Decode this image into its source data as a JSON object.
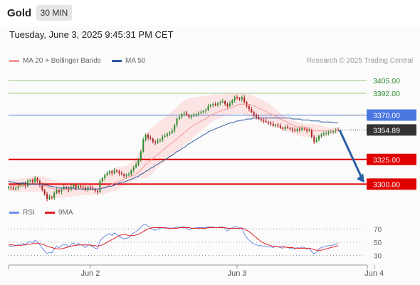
{
  "header": {
    "instrument": "Gold",
    "timeframe": "30 MIN",
    "timestamp": "Tuesday, June 3, 2025 9:45:31 PM CET"
  },
  "legend": {
    "ma20_label": "MA 20 + Bollinger Bands",
    "ma50_label": "MA 50",
    "rsi_label": "RSI",
    "ma9_label": "9MA"
  },
  "credit": "Research © 2025 Trading Central",
  "colors": {
    "ma20": "#f29a9a",
    "ma50": "#2b5a9e",
    "bollinger_fill": "#fde4e4",
    "resistance_blue": "#4a77e0",
    "support_red": "#e00000",
    "target_green": "#9ac77a",
    "bull": "#2e8b2e",
    "bear": "#b22222",
    "arrow": "#2b5fa6",
    "rsi": "#6f8ee8",
    "ma9": "#e02020"
  },
  "chart_data": [
    {
      "type": "candlestick",
      "title": "Gold 30 MIN",
      "x_ticks": [
        "Jun 2",
        "Jun 3",
        "Jun 4"
      ],
      "ylim": [
        3288,
        3418
      ],
      "price_levels": [
        {
          "value": 3405.0,
          "label": "3405.00",
          "kind": "target"
        },
        {
          "value": 3392.0,
          "label": "3392.00",
          "kind": "target"
        },
        {
          "value": 3370.0,
          "label": "3370.00",
          "kind": "resistance"
        },
        {
          "value": 3354.89,
          "label": "3354.89",
          "kind": "last"
        },
        {
          "value": 3325.0,
          "label": "3325.00",
          "kind": "support"
        },
        {
          "value": 3300.0,
          "label": "3300.00",
          "kind": "support"
        }
      ],
      "close": [
        3297,
        3296,
        3295,
        3296,
        3298,
        3299,
        3301,
        3298,
        3303,
        3304,
        3302,
        3306,
        3303,
        3299,
        3294,
        3290,
        3285,
        3287,
        3286,
        3291,
        3294,
        3292,
        3295,
        3297,
        3296,
        3294,
        3297,
        3299,
        3296,
        3298,
        3297,
        3296,
        3294,
        3297,
        3296,
        3295,
        3293,
        3292,
        3303,
        3306,
        3309,
        3311,
        3313,
        3311,
        3314,
        3313,
        3311,
        3310,
        3308,
        3309,
        3310,
        3314,
        3317,
        3320,
        3325,
        3333,
        3345,
        3350,
        3347,
        3346,
        3343,
        3342,
        3344,
        3345,
        3348,
        3349,
        3351,
        3352,
        3354,
        3360,
        3366,
        3368,
        3371,
        3372,
        3370,
        3368,
        3369,
        3370,
        3371,
        3372,
        3373,
        3374,
        3375,
        3379,
        3380,
        3381,
        3380,
        3382,
        3383,
        3384,
        3381,
        3379,
        3382,
        3385,
        3388,
        3387,
        3386,
        3388,
        3383,
        3379,
        3376,
        3373,
        3370,
        3368,
        3366,
        3365,
        3364,
        3363,
        3362,
        3361,
        3359,
        3360,
        3359,
        3357,
        3356,
        3358,
        3357,
        3356,
        3355,
        3354,
        3356,
        3355,
        3357,
        3356,
        3354,
        3355,
        3348,
        3343,
        3345,
        3349,
        3350,
        3351,
        3352,
        3353,
        3353,
        3354,
        3355,
        3354.89
      ],
      "ma20": [
        3299,
        3299,
        3299,
        3298,
        3298,
        3299,
        3299,
        3299,
        3300,
        3300,
        3300,
        3300,
        3300,
        3300,
        3299,
        3298,
        3297,
        3296,
        3296,
        3295,
        3295,
        3294,
        3294,
        3294,
        3294,
        3295,
        3295,
        3295,
        3295,
        3295,
        3296,
        3296,
        3295,
        3295,
        3295,
        3295,
        3295,
        3295,
        3296,
        3296,
        3297,
        3298,
        3299,
        3300,
        3301,
        3302,
        3303,
        3304,
        3305,
        3306,
        3307,
        3308,
        3309,
        3310,
        3312,
        3314,
        3317,
        3320,
        3322,
        3324,
        3326,
        3328,
        3330,
        3332,
        3334,
        3336,
        3338,
        3340,
        3342,
        3344,
        3346,
        3348,
        3350,
        3352,
        3354,
        3356,
        3358,
        3360,
        3361,
        3362,
        3364,
        3365,
        3366,
        3368,
        3370,
        3371,
        3372,
        3373,
        3374,
        3375,
        3376,
        3376,
        3377,
        3378,
        3379,
        3380,
        3381,
        3381,
        3381,
        3381,
        3381,
        3380,
        3379,
        3378,
        3377,
        3376,
        3375,
        3374,
        3372,
        3371,
        3370,
        3369,
        3367,
        3366,
        3365,
        3364,
        3362,
        3361,
        3360,
        3359,
        3358,
        3358,
        3357,
        3357,
        3356,
        3356,
        3355,
        3354,
        3354,
        3354,
        3354,
        3354,
        3354,
        3354,
        3354,
        3354,
        3355,
        3355
      ],
      "bb_upper": [
        3305,
        3305,
        3305,
        3305,
        3305,
        3306,
        3306,
        3306,
        3307,
        3307,
        3308,
        3308,
        3308,
        3308,
        3308,
        3308,
        3307,
        3306,
        3305,
        3304,
        3303,
        3303,
        3302,
        3302,
        3302,
        3302,
        3302,
        3302,
        3302,
        3302,
        3302,
        3302,
        3302,
        3302,
        3302,
        3301,
        3301,
        3301,
        3304,
        3306,
        3309,
        3311,
        3313,
        3314,
        3316,
        3317,
        3318,
        3318,
        3318,
        3319,
        3320,
        3322,
        3324,
        3327,
        3331,
        3336,
        3343,
        3349,
        3353,
        3356,
        3358,
        3360,
        3362,
        3364,
        3366,
        3368,
        3370,
        3372,
        3374,
        3376,
        3378,
        3381,
        3383,
        3385,
        3386,
        3387,
        3388,
        3388,
        3388,
        3389,
        3389,
        3389,
        3389,
        3390,
        3390,
        3391,
        3391,
        3391,
        3391,
        3391,
        3391,
        3391,
        3392,
        3392,
        3392,
        3392,
        3392,
        3392,
        3392,
        3391,
        3391,
        3390,
        3389,
        3388,
        3387,
        3386,
        3385,
        3383,
        3382,
        3380,
        3378,
        3376,
        3374,
        3372,
        3370,
        3368,
        3367,
        3366,
        3365,
        3364,
        3363,
        3362,
        3362,
        3361,
        3361,
        3361,
        3361,
        3361,
        3360,
        3360,
        3359,
        3358,
        3358,
        3357,
        3357,
        3357,
        3357,
        3357
      ],
      "bb_lower": [
        3293,
        3293,
        3293,
        3292,
        3292,
        3292,
        3292,
        3292,
        3292,
        3293,
        3292,
        3292,
        3292,
        3292,
        3291,
        3290,
        3288,
        3287,
        3286,
        3286,
        3286,
        3286,
        3286,
        3286,
        3286,
        3287,
        3287,
        3288,
        3288,
        3288,
        3289,
        3289,
        3289,
        3289,
        3289,
        3289,
        3289,
        3289,
        3289,
        3289,
        3290,
        3291,
        3292,
        3293,
        3293,
        3294,
        3295,
        3297,
        3298,
        3300,
        3302,
        3303,
        3304,
        3305,
        3306,
        3306,
        3306,
        3306,
        3307,
        3309,
        3311,
        3314,
        3316,
        3319,
        3321,
        3323,
        3325,
        3327,
        3329,
        3331,
        3333,
        3335,
        3337,
        3339,
        3341,
        3343,
        3345,
        3348,
        3350,
        3352,
        3354,
        3356,
        3358,
        3360,
        3362,
        3364,
        3365,
        3366,
        3367,
        3368,
        3369,
        3370,
        3370,
        3371,
        3371,
        3371,
        3371,
        3371,
        3370,
        3369,
        3368,
        3368,
        3367,
        3366,
        3365,
        3364,
        3363,
        3362,
        3361,
        3360,
        3359,
        3358,
        3357,
        3356,
        3355,
        3354,
        3353,
        3352,
        3351,
        3350,
        3349,
        3349,
        3348,
        3348,
        3348,
        3348,
        3348,
        3347,
        3347,
        3347,
        3347,
        3348,
        3348,
        3349,
        3350,
        3350,
        3351,
        3352
      ],
      "ma50": [
        3303,
        3302,
        3302,
        3301,
        3301,
        3301,
        3301,
        3301,
        3300,
        3300,
        3300,
        3300,
        3300,
        3300,
        3300,
        3299,
        3299,
        3298,
        3298,
        3297,
        3297,
        3296,
        3296,
        3296,
        3296,
        3296,
        3296,
        3296,
        3295,
        3295,
        3295,
        3295,
        3295,
        3295,
        3295,
        3295,
        3295,
        3295,
        3295,
        3296,
        3296,
        3297,
        3298,
        3298,
        3299,
        3300,
        3301,
        3302,
        3302,
        3303,
        3304,
        3305,
        3306,
        3307,
        3308,
        3310,
        3311,
        3313,
        3314,
        3316,
        3317,
        3319,
        3320,
        3322,
        3323,
        3325,
        3326,
        3328,
        3329,
        3331,
        3333,
        3334,
        3336,
        3337,
        3339,
        3341,
        3342,
        3344,
        3345,
        3347,
        3348,
        3350,
        3351,
        3353,
        3354,
        3355,
        3356,
        3357,
        3358,
        3359,
        3360,
        3361,
        3362,
        3362,
        3363,
        3364,
        3364,
        3365,
        3365,
        3366,
        3366,
        3366,
        3367,
        3367,
        3367,
        3367,
        3367,
        3367,
        3367,
        3367,
        3367,
        3367,
        3367,
        3367,
        3367,
        3367,
        3367,
        3367,
        3366,
        3366,
        3366,
        3366,
        3365,
        3365,
        3365,
        3365,
        3364,
        3364,
        3364,
        3364,
        3363,
        3363,
        3363,
        3363,
        3363,
        3362,
        3362,
        3362
      ],
      "projection": {
        "from": 3354.89,
        "to": 3300.0
      }
    },
    {
      "type": "line",
      "title": "RSI",
      "ylim": [
        20,
        80
      ],
      "y_ticks": [
        70,
        50,
        30
      ],
      "series": [
        {
          "name": "RSI",
          "values": [
            45,
            44,
            44,
            45,
            46,
            47,
            48,
            46,
            50,
            51,
            49,
            53,
            50,
            46,
            41,
            37,
            33,
            35,
            34,
            40,
            44,
            42,
            45,
            47,
            46,
            43,
            47,
            49,
            45,
            48,
            46,
            45,
            42,
            46,
            45,
            43,
            41,
            40,
            52,
            56,
            59,
            61,
            63,
            60,
            64,
            62,
            59,
            57,
            55,
            56,
            57,
            61,
            64,
            66,
            69,
            73,
            76,
            77,
            74,
            72,
            69,
            68,
            70,
            71,
            72,
            71,
            72,
            71,
            71,
            72,
            73,
            72,
            73,
            73,
            71,
            69,
            70,
            71,
            72,
            72,
            72,
            72,
            72,
            73,
            73,
            73,
            72,
            72,
            73,
            73,
            70,
            67,
            70,
            72,
            74,
            73,
            71,
            72,
            62,
            57,
            53,
            50,
            47,
            46,
            45,
            45,
            44,
            44,
            43,
            43,
            42,
            44,
            43,
            42,
            41,
            43,
            42,
            41,
            40,
            40,
            42,
            41,
            43,
            42,
            40,
            41,
            36,
            33,
            35,
            40,
            42,
            43,
            44,
            45,
            45,
            46,
            47,
            48
          ]
        },
        {
          "name": "9MA",
          "values": [
            46,
            46,
            46,
            45,
            45,
            45,
            46,
            46,
            47,
            47,
            48,
            48,
            49,
            48,
            47,
            46,
            44,
            43,
            42,
            41,
            40,
            40,
            40,
            41,
            42,
            43,
            44,
            45,
            45,
            46,
            46,
            46,
            46,
            46,
            46,
            45,
            45,
            44,
            45,
            46,
            48,
            50,
            52,
            54,
            56,
            58,
            60,
            61,
            62,
            61,
            60,
            60,
            60,
            61,
            62,
            64,
            66,
            68,
            70,
            71,
            72,
            72,
            72,
            72,
            72,
            72,
            71,
            71,
            71,
            71,
            71,
            72,
            72,
            72,
            72,
            72,
            71,
            71,
            71,
            71,
            71,
            71,
            71,
            72,
            72,
            72,
            72,
            72,
            72,
            72,
            72,
            71,
            71,
            71,
            71,
            71,
            71,
            71,
            70,
            68,
            66,
            63,
            60,
            57,
            54,
            51,
            49,
            47,
            46,
            45,
            44,
            44,
            43,
            43,
            43,
            43,
            42,
            42,
            42,
            41,
            41,
            41,
            41,
            41,
            41,
            41,
            40,
            39,
            38,
            38,
            38,
            39,
            40,
            41,
            42,
            43,
            44,
            45
          ]
        }
      ]
    }
  ]
}
